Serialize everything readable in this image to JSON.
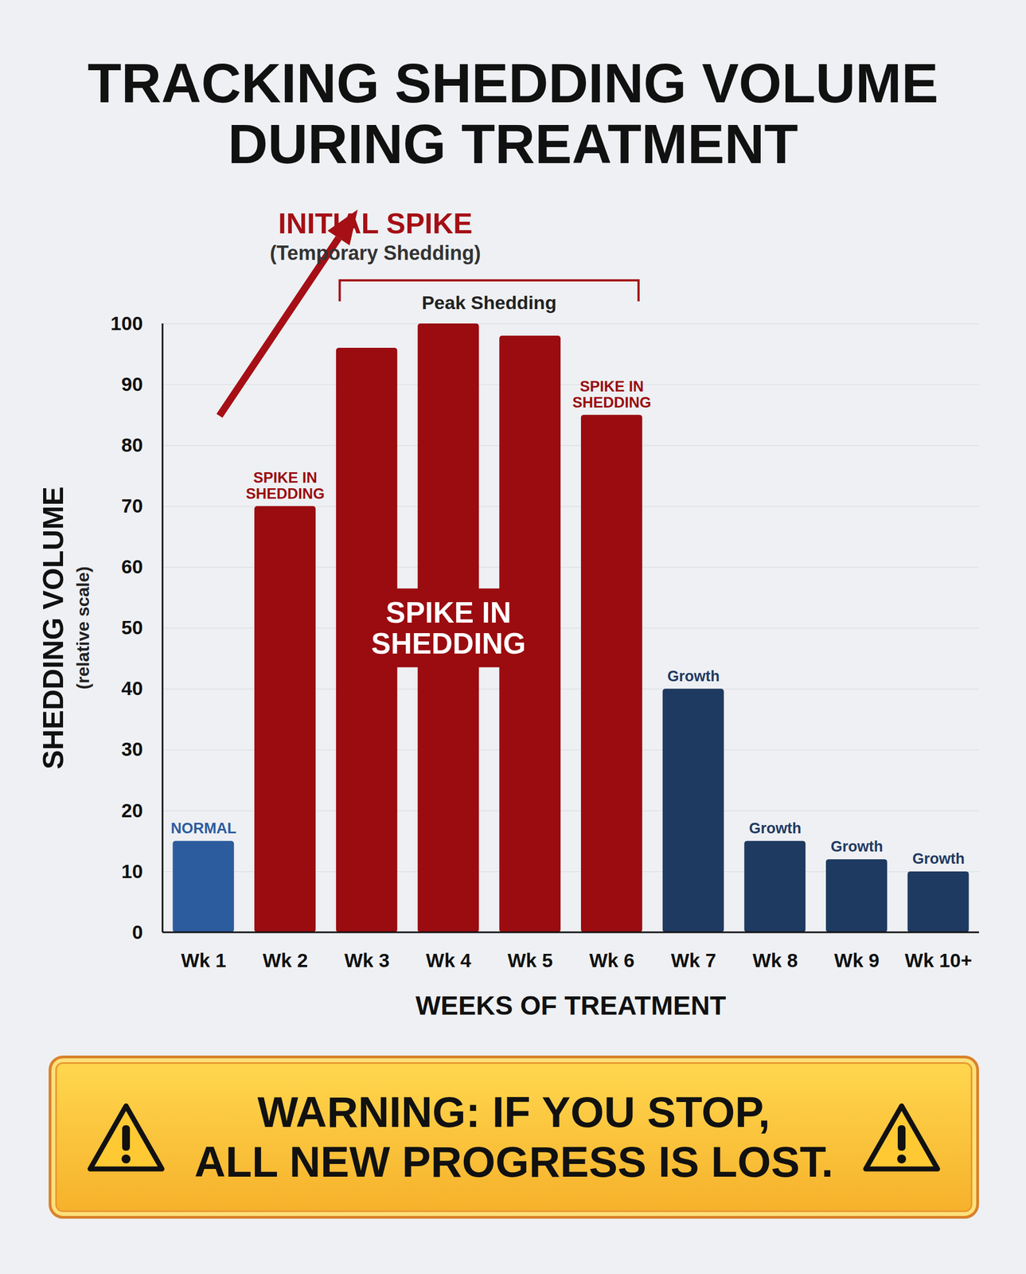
{
  "chart_data": {
    "type": "bar",
    "title": "TRACKING SHEDDING VOLUME DURING TREATMENT",
    "x_label": "WEEKS OF TREATMENT",
    "y_label": "SHEDDING VOLUME",
    "y_sublabel": "(relative scale)",
    "categories": [
      "Wk 1",
      "Wk 2",
      "Wk 3",
      "Wk 4",
      "Wk 5",
      "Wk 6",
      "Wk 7",
      "Wk 8",
      "Wk 9",
      "Wk 10+"
    ],
    "values": [
      15,
      70,
      96,
      100,
      98,
      85,
      40,
      15,
      12,
      10
    ],
    "colors": [
      "#2d5c9e",
      "#9a0c10",
      "#9a0c10",
      "#9a0c10",
      "#9a0c10",
      "#9a0c10",
      "#1f3a61",
      "#1f3a61",
      "#1f3a61",
      "#1f3a61"
    ],
    "ylim": [
      0,
      100
    ],
    "yticks": [
      0,
      10,
      20,
      30,
      40,
      50,
      60,
      70,
      80,
      90,
      100
    ],
    "grid": true,
    "annotations": [
      {
        "category": "Wk 1",
        "text": "NORMAL"
      },
      {
        "category": "Wk 2",
        "text": "SPIKE IN SHEDDING"
      },
      {
        "category": "Wk 6",
        "text": "SPIKE IN SHEDDING"
      },
      {
        "category": "Wk 7",
        "text": "Growth"
      },
      {
        "category": "Wk 8",
        "text": "Growth"
      },
      {
        "category": "Wk 9",
        "text": "Growth"
      },
      {
        "category": "Wk 10+",
        "text": "Growth"
      }
    ],
    "center_label": {
      "category": "Wk 4",
      "text": "SPIKE IN SHEDDING"
    },
    "bracket": {
      "from": "Wk 3",
      "to": "Wk 6",
      "text": "Peak Shedding"
    },
    "callout": {
      "text": "INITIAL SPIKE",
      "subtitle": "(Temporary Shedding)"
    },
    "warning": "WARNING: IF YOU STOP, ALL NEW PROGRESS IS LOST."
  }
}
